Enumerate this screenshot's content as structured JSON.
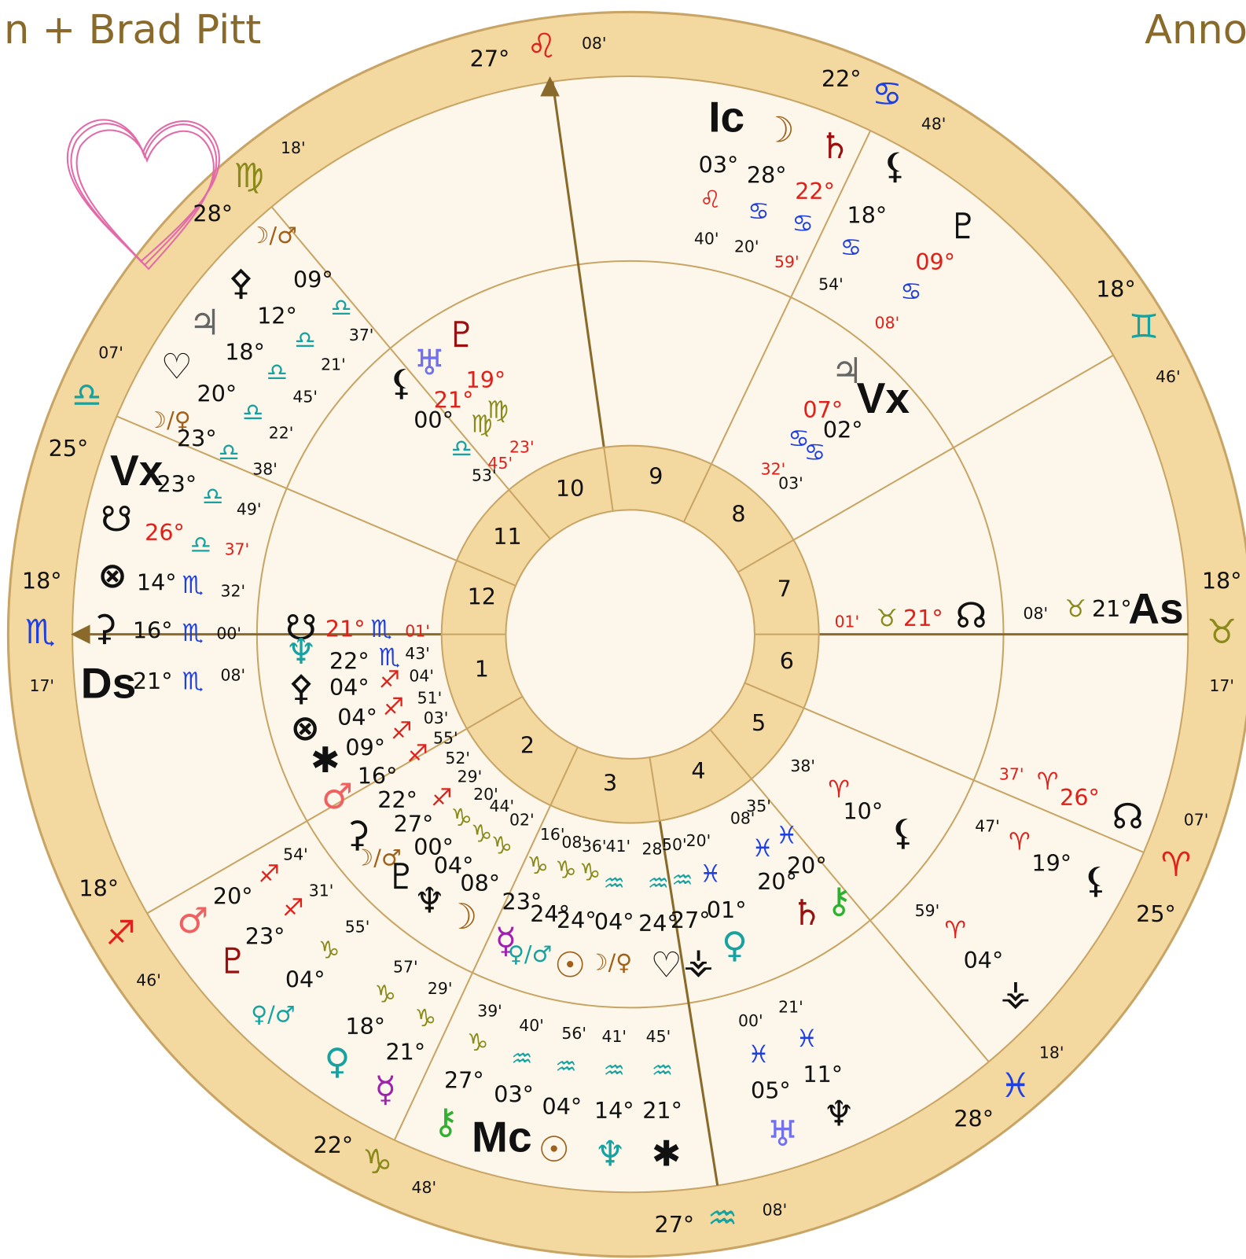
{
  "header": {
    "title_left": "n + Brad Pitt",
    "title_right": "Anno"
  },
  "zodiac_ring": [
    "27°",
    "♌",
    "08'",
    "22°",
    "♋",
    "48'",
    "18°",
    "♊",
    "46'",
    "18°",
    "♉",
    "17'",
    "07'",
    "♈",
    "25°",
    "18'",
    "♓",
    "28°",
    "08'",
    "♒",
    "27°",
    "22°",
    "♑",
    "48'",
    "18°",
    "♐",
    "46'",
    "17'",
    "♏",
    "18°",
    "25°",
    "♎",
    "07'",
    "28°",
    "♍",
    "18'"
  ],
  "houses": [
    "1",
    "2",
    "3",
    "4",
    "5",
    "6",
    "7",
    "8",
    "9",
    "10",
    "11",
    "12"
  ],
  "planets": [
    "☽/♂",
    "⚴",
    "09°",
    "♎",
    "♃",
    "12°",
    "♎",
    "37'",
    "♡",
    "18°",
    "♎",
    "21'",
    "20°",
    "♎",
    "45'",
    "☽/♀",
    "23°",
    "♎",
    "22'",
    "Vx",
    "23°",
    "♎",
    "38'",
    "49'",
    "☋",
    "26°",
    "♎",
    "37'",
    "⊗",
    "14°",
    "♏",
    "32'",
    "⚳",
    "16°",
    "♏",
    "00'",
    "Ds",
    "21°",
    "♏",
    "08'",
    "Ic",
    "☽",
    "♄",
    "03°",
    "♌",
    "28°",
    "♋",
    "22°",
    "♋",
    "40'",
    "20'",
    "59'",
    "⚸",
    "18°",
    "♋",
    "54'",
    "♇",
    "09°",
    "♋",
    "08'",
    "01'",
    "♉",
    "21°",
    "☊",
    "08'",
    "♉",
    "21°",
    "As",
    "37'",
    "♈",
    "26°",
    "☊",
    "47'",
    "♈",
    "19°",
    "⚸",
    "59'",
    "♈",
    "04°",
    "⚶",
    "20°",
    "♐",
    "54'",
    "♂",
    "23°",
    "♐",
    "31'",
    "♇",
    "♀/♂",
    "04°",
    "♑",
    "55'",
    "♀",
    "18°",
    "♑",
    "57'",
    "☿",
    "21°",
    "♑",
    "29'",
    "⚷",
    "27°",
    "♑",
    "39'",
    "Mc",
    "03°",
    "♒",
    "40'",
    "☉",
    "04°",
    "♒",
    "56'",
    "♆",
    "14°",
    "♒",
    "41'",
    "✱",
    "21°",
    "♒",
    "45'",
    "00'",
    "♓",
    "05°",
    "♅",
    "21'",
    "♓",
    "11°",
    "♆",
    "♅",
    "♇",
    "19°",
    "21°",
    "♍",
    "♍",
    "⚸",
    "00°",
    "♎",
    "45'",
    "23'",
    "53'",
    "♃",
    "Vx",
    "07°",
    "02°",
    "♋",
    "♋",
    "32'",
    "03'",
    "☋",
    "♆",
    "21°",
    "♏",
    "01'",
    "22°",
    "♏",
    "43'",
    "⚴",
    "04°",
    "♐",
    "04'",
    "⊗",
    "04°",
    "♐",
    "51'",
    "✱",
    "09°",
    "♐",
    "03'",
    "♂",
    "16°",
    "♐",
    "55'",
    "⚳",
    "22°",
    "♐",
    "52'",
    "☽/♂",
    "27°",
    "♑",
    "29'",
    "♇",
    "00°",
    "♑",
    "20'",
    "♆",
    "04°",
    "♑",
    "44'",
    "08°",
    "02'",
    "☽",
    "16'",
    "08'",
    "36'",
    "41'",
    "♑",
    "♑",
    "♑",
    "♒",
    "23°",
    "24°",
    "24°",
    "04°",
    "☿",
    "♀/♂",
    "☉",
    "☽/♀",
    "28'",
    "50'",
    "20'",
    "♒",
    "♒",
    "♓",
    "24°",
    "27°",
    "01°",
    "♡",
    "⚶",
    "♀",
    "38'",
    "♈",
    "10°",
    "⚸",
    "08'",
    "35'",
    "♓",
    "♓",
    "20°",
    "20°",
    "♄",
    "⚷"
  ]
}
